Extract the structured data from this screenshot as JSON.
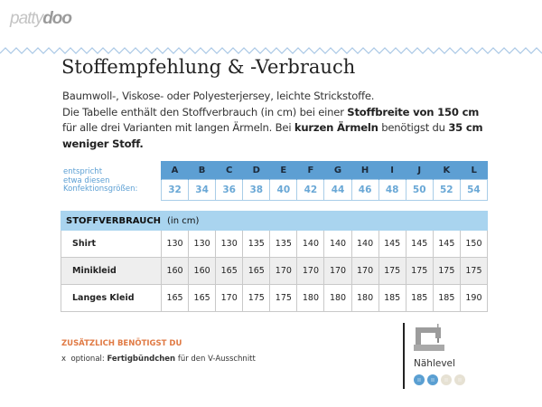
{
  "logo": {
    "part1": "patty",
    "part2": "doo"
  },
  "title": "Stoffempfehlung & -Verbrauch",
  "paragraph": {
    "s1": "Baumwoll-, Viskose- oder Polyesterjersey, leichte Strickstoffe.",
    "s2": "Die Tabelle enthält den Stoffverbrauch (in cm) bei einer ",
    "b1": "Stoffbreite von 150 cm",
    "s3": " für alle drei Varianten mit langen Ärmeln. Bei ",
    "b2": "kurzen Ärmeln",
    "s4": " benötigst du ",
    "b3": "35 cm weniger Stoff."
  },
  "sizes": {
    "label": [
      "entspricht",
      "etwa diesen",
      "Konfektionsgrößen:"
    ],
    "letters": [
      "A",
      "B",
      "C",
      "D",
      "E",
      "F",
      "G",
      "H",
      "I",
      "J",
      "K",
      "L"
    ],
    "numbers": [
      "32",
      "34",
      "36",
      "38",
      "40",
      "42",
      "44",
      "46",
      "48",
      "50",
      "52",
      "54"
    ]
  },
  "consumption": {
    "header": "STOFFVERBRAUCH",
    "unit": "(in cm)",
    "rows": [
      {
        "label": "Shirt",
        "values": [
          "130",
          "130",
          "130",
          "135",
          "135",
          "140",
          "140",
          "140",
          "145",
          "145",
          "145",
          "150"
        ]
      },
      {
        "label": "Minikleid",
        "values": [
          "160",
          "160",
          "165",
          "165",
          "170",
          "170",
          "170",
          "170",
          "175",
          "175",
          "175",
          "175"
        ]
      },
      {
        "label": "Langes Kleid",
        "values": [
          "165",
          "165",
          "170",
          "175",
          "175",
          "180",
          "180",
          "180",
          "185",
          "185",
          "185",
          "190"
        ]
      }
    ]
  },
  "extras": {
    "heading": "ZUSÄTZLICH BENÖTIGST DU",
    "bullet": "x",
    "prefix": "optional: ",
    "bold": "Fertigbündchen",
    "suffix": " für den V-Ausschnitt"
  },
  "level": {
    "label": "Nählevel",
    "value": 2,
    "max": 4,
    "icon": "sewing-machine-icon",
    "active_color": "#5a9fd2",
    "inactive_color": "#e6e1d3"
  }
}
